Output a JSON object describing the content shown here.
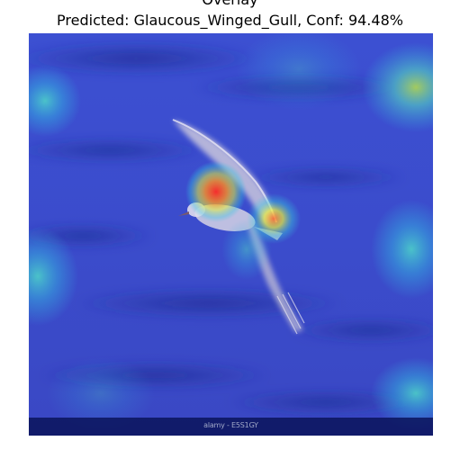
{
  "figure": {
    "title": "Overlay",
    "subtitle": "Predicted: Glaucous_Winged_Gull, Conf: 94.48%"
  },
  "image": {
    "subject": "gull-in-flight",
    "watermark": "alamy - E5S1GY"
  },
  "colors": {
    "base": "#3a4ecf",
    "dark_band": "#23339e",
    "heat_low": "#33c6e0",
    "heat_mid": "#e8f03c",
    "heat_high": "#ff2a1f",
    "bird_wing": "#c9c6dd",
    "watermark_bar": "#0a145a"
  }
}
